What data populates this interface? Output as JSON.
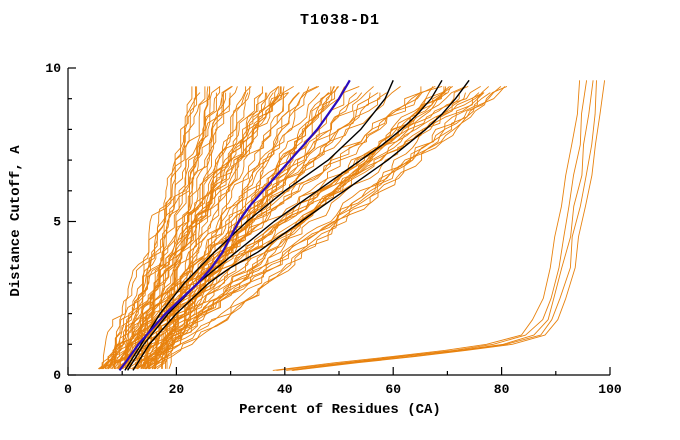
{
  "chart_data": {
    "type": "line",
    "title": "T1038-D1",
    "xlabel": "Percent of Residues (CA)",
    "ylabel": "Distance Cutoff, A",
    "xlim": [
      0,
      100
    ],
    "ylim": [
      0,
      10
    ],
    "xticks": [
      0,
      20,
      40,
      60,
      80,
      100
    ],
    "xminor_step": 10,
    "yticks": [
      0,
      5,
      10
    ],
    "yminor_step": 1,
    "grid": false,
    "legend": "none",
    "colors": {
      "ensemble": "#e8820e",
      "highlight": "#000000",
      "best": "#2a0bbe",
      "axis": "#000000"
    },
    "ensemble": {
      "count": 85,
      "seed": 42,
      "x_start_range": [
        5,
        18
      ],
      "x_end_range": [
        22,
        82
      ],
      "y_start": 0.2,
      "y_end": 9.6,
      "jitter": 2.4
    },
    "right_outliers": {
      "offsets": [
        -2.5,
        -1.2,
        0,
        0.9,
        1.8
      ],
      "base": [
        [
          40,
          0.15
        ],
        [
          52,
          0.4
        ],
        [
          62,
          0.6
        ],
        [
          72,
          0.8
        ],
        [
          80,
          1.0
        ],
        [
          86,
          1.3
        ],
        [
          88.5,
          1.8
        ],
        [
          90,
          2.5
        ],
        [
          91.5,
          3.5
        ],
        [
          92.5,
          4.5
        ],
        [
          93.5,
          5.5
        ],
        [
          94.5,
          6.5
        ],
        [
          95.5,
          7.5
        ],
        [
          96.3,
          8.5
        ],
        [
          97,
          9.6
        ]
      ]
    },
    "black_series": [
      {
        "points": [
          [
            12,
            0.15
          ],
          [
            15,
            1
          ],
          [
            20,
            2
          ],
          [
            26,
            3
          ],
          [
            30,
            3.5
          ],
          [
            35,
            4
          ],
          [
            39,
            4.5
          ],
          [
            43,
            5
          ],
          [
            47,
            5.5
          ],
          [
            51,
            6
          ],
          [
            55,
            6.5
          ],
          [
            59,
            7
          ],
          [
            62.5,
            7.5
          ],
          [
            66,
            8
          ],
          [
            69,
            8.5
          ],
          [
            71.5,
            9
          ],
          [
            74,
            9.6
          ]
        ]
      },
      {
        "points": [
          [
            11,
            0.15
          ],
          [
            14,
            1
          ],
          [
            18.5,
            2
          ],
          [
            24,
            3
          ],
          [
            31,
            4
          ],
          [
            38,
            5
          ],
          [
            42,
            5.5
          ],
          [
            46,
            6
          ],
          [
            50,
            6.5
          ],
          [
            54,
            7
          ],
          [
            58,
            7.5
          ],
          [
            61.5,
            8
          ],
          [
            64.5,
            8.5
          ],
          [
            67,
            9
          ],
          [
            69,
            9.6
          ]
        ]
      },
      {
        "points": [
          [
            10.5,
            0.15
          ],
          [
            13.5,
            1
          ],
          [
            17,
            2
          ],
          [
            21.5,
            3
          ],
          [
            27,
            4
          ],
          [
            33,
            5
          ],
          [
            40,
            6
          ],
          [
            48,
            7
          ],
          [
            54,
            8
          ],
          [
            58.5,
            9
          ],
          [
            60,
            9.6
          ]
        ]
      }
    ],
    "blue_series": {
      "points": [
        [
          9.5,
          0.15
        ],
        [
          11,
          0.5
        ],
        [
          13,
          1
        ],
        [
          15.5,
          1.5
        ],
        [
          18,
          2
        ],
        [
          21,
          2.5
        ],
        [
          24,
          3
        ],
        [
          26.5,
          3.5
        ],
        [
          28.5,
          4
        ],
        [
          30,
          4.5
        ],
        [
          31.5,
          5
        ],
        [
          33.5,
          5.5
        ],
        [
          36,
          6
        ],
        [
          38.5,
          6.5
        ],
        [
          41,
          7
        ],
        [
          43.5,
          7.5
        ],
        [
          46,
          8
        ],
        [
          48,
          8.5
        ],
        [
          50,
          9
        ],
        [
          52,
          9.6
        ]
      ]
    }
  }
}
